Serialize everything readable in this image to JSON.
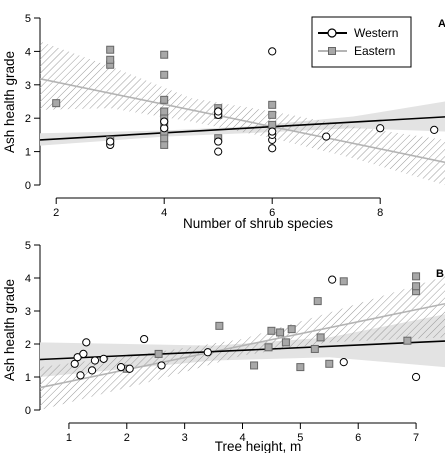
{
  "colors": {
    "western": "#000000",
    "eastern": "#b4b4b4",
    "western_band": "#e3e3e3",
    "eastern_hatch": "#9a9a9a",
    "eastern_marker_fill": "#a8a8a8"
  },
  "legend": {
    "placement": "top-right of panel A",
    "entries": [
      {
        "name": "Western",
        "marker": "circle"
      },
      {
        "name": "Eastern",
        "marker": "square"
      }
    ]
  },
  "chart_data": [
    {
      "panel": "A",
      "type": "scatter",
      "xlabel": "Number of shrub species",
      "ylabel": "Ash health grade",
      "xlim": [
        1.7,
        9.2
      ],
      "ylim": [
        0,
        5
      ],
      "xticks": [
        2,
        4,
        6,
        8
      ],
      "yticks": [
        0,
        1,
        2,
        3,
        4,
        5
      ],
      "grid": false,
      "series": [
        {
          "name": "Western",
          "marker": "circle",
          "points": [
            [
              3,
              1.2
            ],
            [
              3,
              1.3
            ],
            [
              4,
              1.7
            ],
            [
              4,
              1.9
            ],
            [
              5,
              1.0
            ],
            [
              5,
              1.3
            ],
            [
              5,
              2.1
            ],
            [
              5,
              2.2
            ],
            [
              6,
              1.1
            ],
            [
              6,
              1.35
            ],
            [
              6,
              1.5
            ],
            [
              6,
              1.6
            ],
            [
              6,
              4.0
            ],
            [
              7,
              1.45
            ],
            [
              8,
              1.7
            ],
            [
              9,
              1.65
            ]
          ],
          "fit": {
            "x": [
              1.7,
              9.2
            ],
            "y": [
              1.35,
              2.04
            ]
          },
          "ci_lower": [
            1.18,
            1.45,
            1.55,
            1.7,
            1.6
          ],
          "ci_upper": [
            1.55,
            1.63,
            1.75,
            2.05,
            2.5
          ],
          "ci_x": [
            1.7,
            4,
            5.5,
            7.5,
            9.2
          ]
        },
        {
          "name": "Eastern",
          "marker": "square",
          "points": [
            [
              2,
              2.45
            ],
            [
              3,
              1.35
            ],
            [
              3,
              3.6
            ],
            [
              3,
              3.75
            ],
            [
              3,
              4.05
            ],
            [
              4,
              1.2
            ],
            [
              4,
              1.4
            ],
            [
              4,
              1.6
            ],
            [
              4,
              1.8
            ],
            [
              4,
              2.0
            ],
            [
              4,
              2.2
            ],
            [
              4,
              2.55
            ],
            [
              4,
              3.3
            ],
            [
              4,
              3.9
            ],
            [
              5,
              1.4
            ],
            [
              5,
              2.1
            ],
            [
              5,
              2.3
            ],
            [
              6,
              1.8
            ],
            [
              6,
              2.1
            ],
            [
              6,
              2.4
            ]
          ],
          "fit": {
            "x": [
              1.7,
              9.2
            ],
            "y": [
              3.18,
              0.68
            ]
          },
          "ci_lower": [
            2.25,
            2.3,
            1.9,
            1.4,
            0.8,
            0
          ],
          "ci_upper": [
            4.3,
            3.55,
            2.6,
            2.2,
            1.75,
            1.35
          ],
          "ci_x": [
            1.7,
            3,
            4.5,
            6,
            7.5,
            9.2
          ]
        }
      ]
    },
    {
      "panel": "B",
      "type": "scatter",
      "xlabel": "Tree height, m",
      "ylabel": "Ash health grade",
      "xlim": [
        0.5,
        7.5
      ],
      "ylim": [
        0,
        5
      ],
      "xticks": [
        1,
        2,
        3,
        4,
        5,
        6,
        7
      ],
      "yticks": [
        0,
        1,
        2,
        3,
        4,
        5
      ],
      "grid": false,
      "series": [
        {
          "name": "Western",
          "marker": "circle",
          "points": [
            [
              1.1,
              1.4
            ],
            [
              1.15,
              1.6
            ],
            [
              1.2,
              1.05
            ],
            [
              1.25,
              1.7
            ],
            [
              1.3,
              2.05
            ],
            [
              1.4,
              1.2
            ],
            [
              1.45,
              1.5
            ],
            [
              1.6,
              1.55
            ],
            [
              1.9,
              1.3
            ],
            [
              2.05,
              1.25
            ],
            [
              2.3,
              2.15
            ],
            [
              2.6,
              1.35
            ],
            [
              3.4,
              1.75
            ],
            [
              5.55,
              3.95
            ],
            [
              5.75,
              1.45
            ],
            [
              7.0,
              1.0
            ]
          ],
          "fit": {
            "x": [
              0.5,
              7.5
            ],
            "y": [
              1.53,
              2.09
            ]
          },
          "ci_lower": [
            1.0,
            1.5,
            1.6,
            1.3
          ],
          "ci_upper": [
            2.05,
            1.95,
            2.2,
            2.9
          ],
          "ci_x": [
            0.5,
            3.5,
            5.5,
            7.5
          ]
        },
        {
          "name": "Eastern",
          "marker": "square",
          "points": [
            [
              2.0,
              1.25
            ],
            [
              2.55,
              1.7
            ],
            [
              3.6,
              2.55
            ],
            [
              4.2,
              1.35
            ],
            [
              4.45,
              1.9
            ],
            [
              4.5,
              2.4
            ],
            [
              4.65,
              2.35
            ],
            [
              4.75,
              2.05
            ],
            [
              4.85,
              2.45
            ],
            [
              5.0,
              1.3
            ],
            [
              5.25,
              1.85
            ],
            [
              5.3,
              3.3
            ],
            [
              5.35,
              2.2
            ],
            [
              5.5,
              1.4
            ],
            [
              5.75,
              3.9
            ],
            [
              6.85,
              2.1
            ],
            [
              7.0,
              3.6
            ],
            [
              7.0,
              3.75
            ],
            [
              7.0,
              4.05
            ]
          ],
          "fit": {
            "x": [
              0.5,
              7.5
            ],
            "y": [
              0.68,
              3.22
            ]
          },
          "ci_lower": [
            0,
            0.9,
            1.65,
            2.05,
            2.2
          ],
          "ci_upper": [
            1.3,
            1.75,
            2.15,
            2.95,
            4.05
          ],
          "ci_x": [
            0.5,
            2.5,
            4.0,
            5.5,
            7.5
          ]
        }
      ]
    }
  ]
}
